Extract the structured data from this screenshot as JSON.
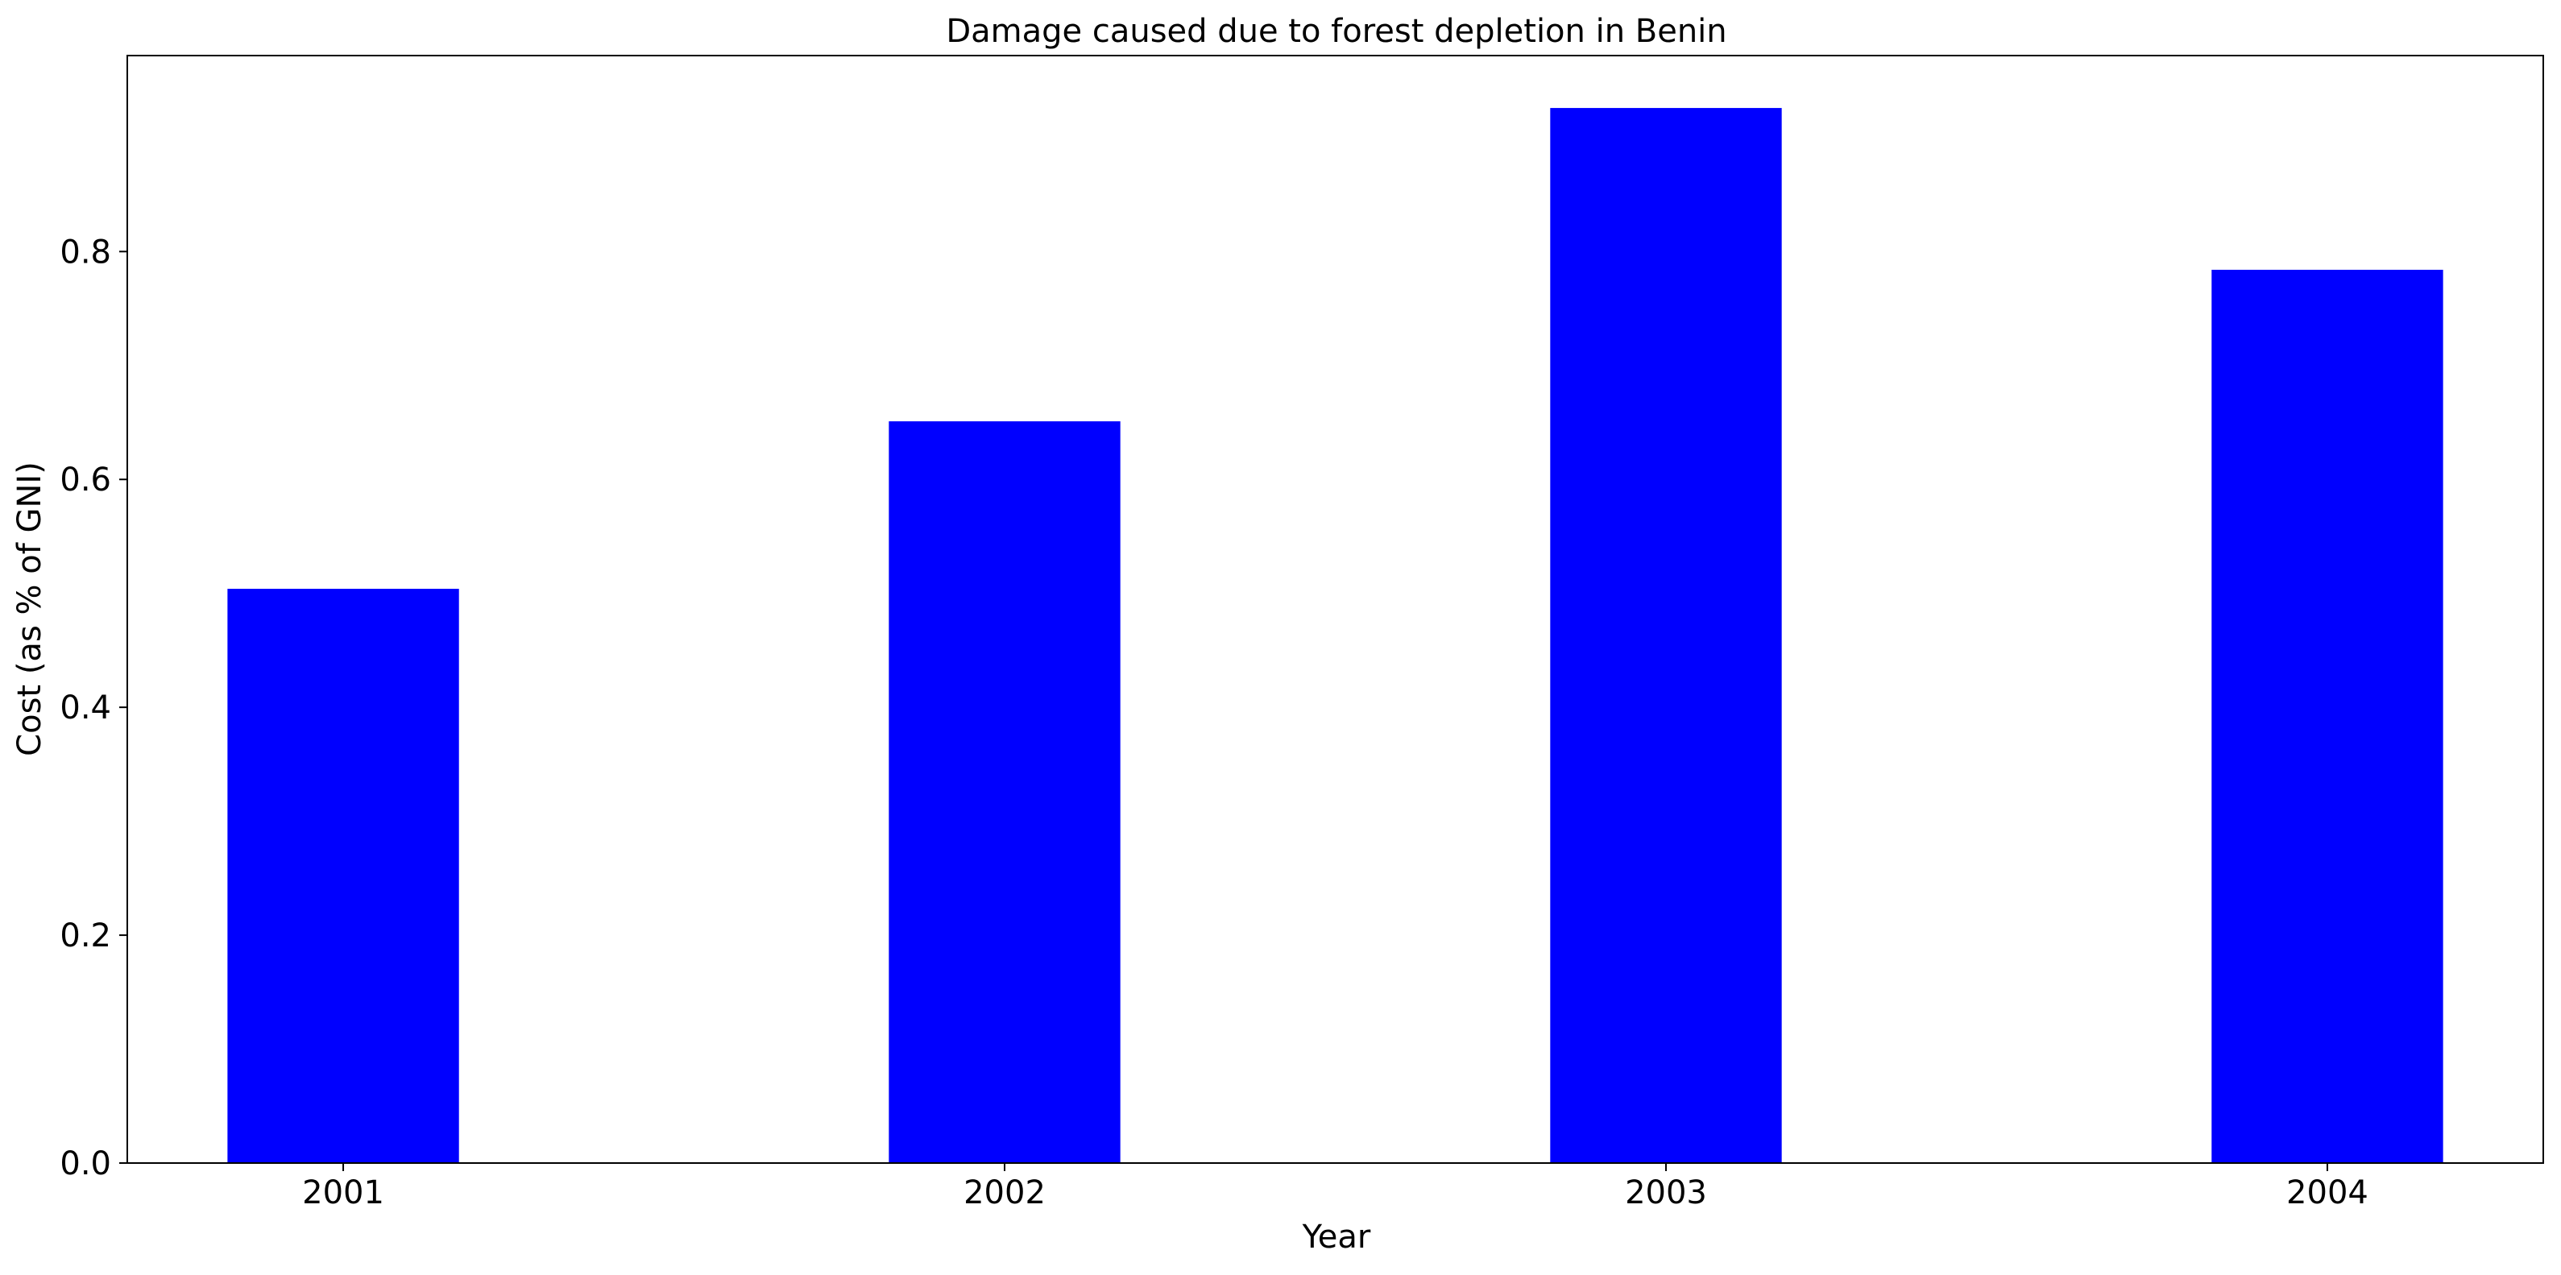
{
  "chart_data": {
    "type": "bar",
    "title": "Damage caused due to forest depletion in Benin",
    "xlabel": "Year",
    "ylabel": "Cost (as % of GNI)",
    "categories": [
      "2001",
      "2002",
      "2003",
      "2004"
    ],
    "values": [
      0.504,
      0.651,
      0.926,
      0.784
    ],
    "ylim": [
      0,
      0.972
    ],
    "yticks": [
      0.0,
      0.2,
      0.4,
      0.6,
      0.8
    ],
    "ytick_labels": [
      "0.0",
      "0.2",
      "0.4",
      "0.6",
      "0.8"
    ],
    "bar_color": "#0000ff",
    "grid": false,
    "legend": "none"
  }
}
